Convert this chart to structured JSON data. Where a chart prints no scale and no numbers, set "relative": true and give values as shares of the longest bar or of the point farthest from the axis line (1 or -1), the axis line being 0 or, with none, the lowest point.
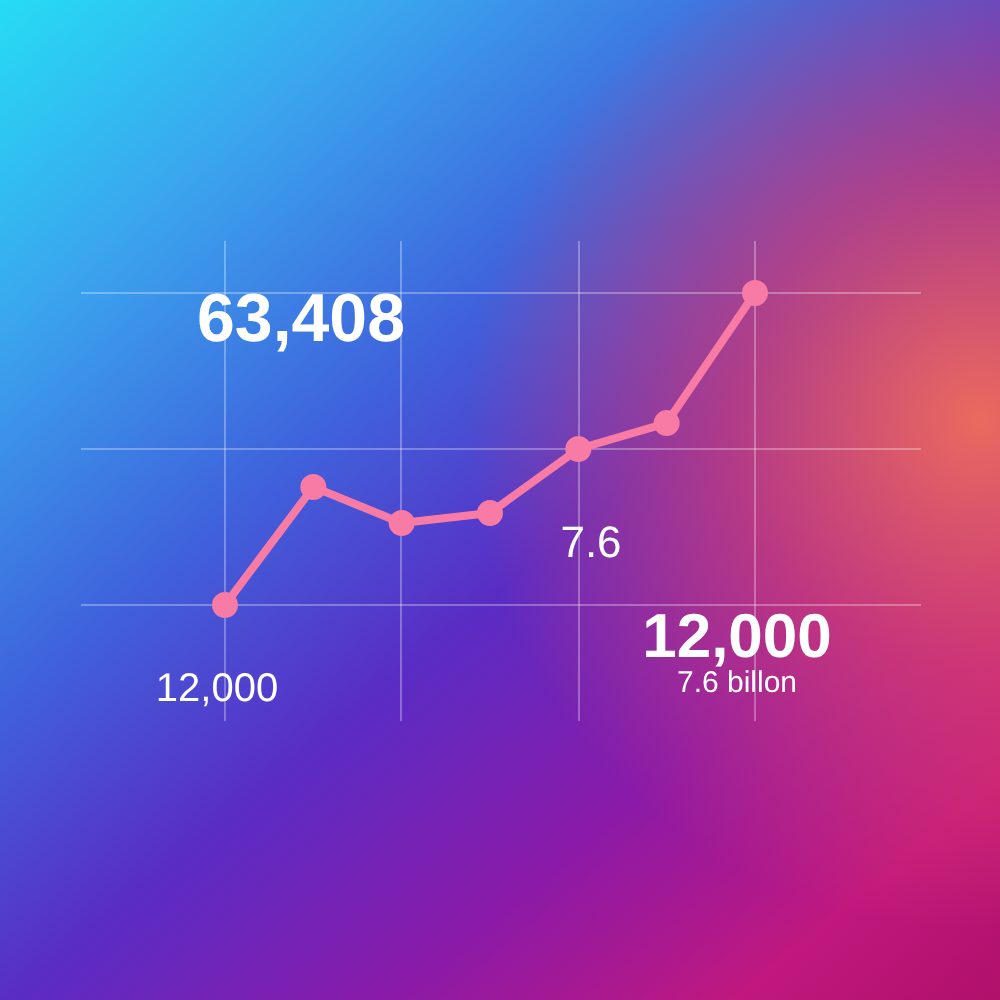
{
  "chart_data": {
    "type": "line",
    "relative": true,
    "grid": true,
    "marker": "circle",
    "categories": [
      null,
      null,
      null,
      null,
      null,
      null,
      null
    ],
    "series": [
      {
        "color": "#f77ba4",
        "values": [
          0,
          0.378,
          0.263,
          0.295,
          0.5,
          0.583,
          1
        ]
      }
    ],
    "annotations": [
      "63,408",
      "7.6",
      "12,000",
      "7.6 billon",
      "12,000"
    ]
  }
}
